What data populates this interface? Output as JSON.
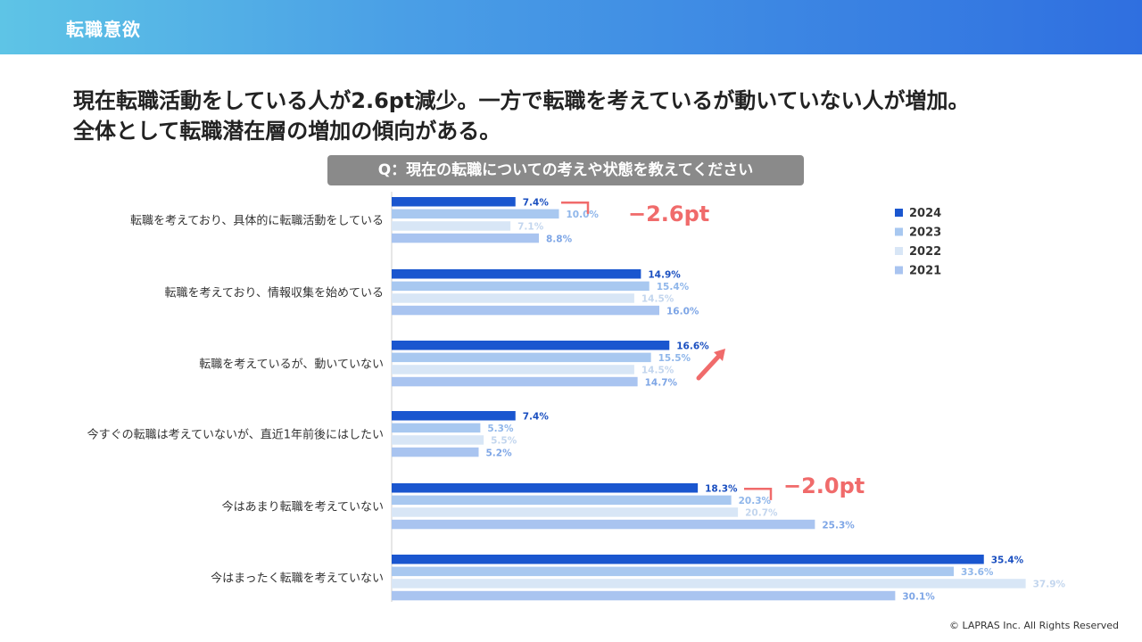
{
  "header": {
    "title": "転職意欲"
  },
  "headline": {
    "line1": "現在転職活動をしている人が2.6pt減少。一方で転職を考えているが動いていない人が増加。",
    "line2": "全体として転職潜在層の増加の傾向がある。"
  },
  "question": "Q：現在の転職についての考えや状態を教えてください",
  "footer": "© LAPRAS Inc. All Rights Reserved",
  "colors": {
    "2024": "#1a56cf",
    "2023": "#a8c8f0",
    "2022": "#d8e6f6",
    "2021": "#a9c4f0",
    "annotation": "#f06b6b"
  },
  "chart_data": {
    "type": "bar",
    "orientation": "horizontal",
    "categories": [
      "転職を考えており、具体的に転職活動をしている",
      "転職を考えており、情報収集を始めている",
      "転職を考えているが、動いていない",
      "今すぐの転職は考えていないが、直近1年前後にはしたい",
      "今はあまり転職を考えていない",
      "今はまったく転職を考えていない"
    ],
    "series": [
      {
        "name": "2024",
        "values": [
          7.4,
          14.9,
          16.6,
          7.4,
          18.3,
          35.4
        ],
        "labels": [
          "7.4%",
          "14.9%",
          "16.6%",
          "7.4%",
          "18.3%",
          "35.4%"
        ]
      },
      {
        "name": "2023",
        "values": [
          10.0,
          15.4,
          15.5,
          5.3,
          20.3,
          33.6
        ],
        "labels": [
          "10.0%",
          "15.4%",
          "15.5%",
          "5.3%",
          "20.3%",
          "33.6%"
        ]
      },
      {
        "name": "2022",
        "values": [
          7.1,
          14.5,
          14.5,
          5.5,
          20.7,
          37.9
        ],
        "labels": [
          "7.1%",
          "14.5%",
          "14.5%",
          "5.5%",
          "20.7%",
          "37.9%"
        ]
      },
      {
        "name": "2021",
        "values": [
          8.8,
          16.0,
          14.7,
          5.2,
          25.3,
          30.1
        ],
        "labels": [
          "8.8%",
          "16.0%",
          "14.7%",
          "5.2%",
          "25.3%",
          "30.1%"
        ]
      }
    ],
    "legend": [
      "2024",
      "2023",
      "2022",
      "2021"
    ],
    "legend_position": "top-right",
    "annotations": [
      {
        "category_index": 0,
        "text": "−2.6pt",
        "kind": "bracket"
      },
      {
        "category_index": 2,
        "text": "",
        "kind": "up-arrow"
      },
      {
        "category_index": 4,
        "text": "−2.0pt",
        "kind": "bracket"
      }
    ],
    "grid": false
  }
}
